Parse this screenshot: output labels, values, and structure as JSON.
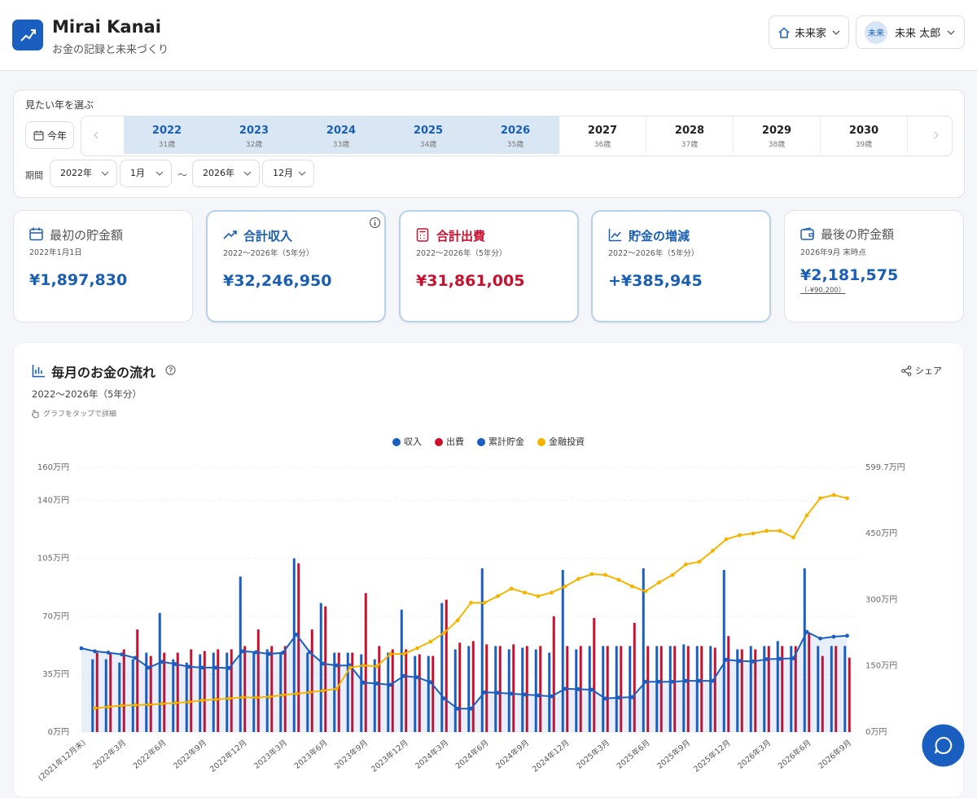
{
  "header": {
    "app_title": "Mirai Kanai",
    "subtitle": "お金の記録と未来づくり",
    "household": "未来家",
    "avatar": "未来",
    "user_name": "未来 太郎"
  },
  "year_selector": {
    "label": "見たい年を選ぶ",
    "today_button": "今年",
    "years": [
      {
        "year": "2022",
        "age": "31歳",
        "selected": true
      },
      {
        "year": "2023",
        "age": "32歳",
        "selected": true
      },
      {
        "year": "2024",
        "age": "33歳",
        "selected": true
      },
      {
        "year": "2025",
        "age": "34歳",
        "selected": true
      },
      {
        "year": "2026",
        "age": "35歳",
        "selected": true
      },
      {
        "year": "2027",
        "age": "36歳",
        "selected": false
      },
      {
        "year": "2028",
        "age": "37歳",
        "selected": false
      },
      {
        "year": "2029",
        "age": "38歳",
        "selected": false
      },
      {
        "year": "2030",
        "age": "39歳",
        "selected": false
      }
    ],
    "period_label": "期間",
    "start_year": "2022年",
    "start_month": "1月",
    "separator": "〜",
    "end_year": "2026年",
    "end_month": "12月"
  },
  "cards": [
    {
      "title": "最初の貯金額",
      "subtitle": "2022年1月1日",
      "value": "¥1,897,830"
    },
    {
      "title": "合計収入",
      "subtitle": "2022〜2026年（5年分）",
      "value": "¥32,246,950"
    },
    {
      "title": "合計出費",
      "subtitle": "2022〜2026年（5年分）",
      "value": "¥31,861,005"
    },
    {
      "title": "貯金の増減",
      "subtitle": "2022〜2026年（5年分）",
      "value": "+¥385,945"
    },
    {
      "title": "最後の貯金額",
      "subtitle": "2026年9月 末時点",
      "value": "¥2,181,575",
      "note": "（-¥90,200）"
    }
  ],
  "chart_panel": {
    "hint": "グラフをタップで詳細",
    "share": "シェア"
  },
  "chart_data": {
    "type": "combo",
    "title": "毎月のお金の流れ",
    "subtitle": "2022〜2026年（5年分）",
    "categories": [
      "(2021年12月末)",
      null,
      null,
      "2022年3月",
      null,
      null,
      "2022年6月",
      null,
      null,
      "2022年9月",
      null,
      null,
      "2022年12月",
      null,
      null,
      "2023年3月",
      null,
      null,
      "2023年6月",
      null,
      null,
      "2023年9月",
      null,
      null,
      "2023年12月",
      null,
      null,
      "2024年3月",
      null,
      null,
      "2024年6月",
      null,
      null,
      "2024年9月",
      null,
      null,
      "2024年12月",
      null,
      null,
      "2025年3月",
      null,
      null,
      "2025年6月",
      null,
      null,
      "2025年9月",
      null,
      null,
      "2025年12月",
      null,
      null,
      "2026年3月",
      null,
      null,
      "2026年6月",
      null,
      null,
      "2026年9月"
    ],
    "series": [
      {
        "name": "収入",
        "type": "bar",
        "color": "#1a5fc0",
        "values": [
          null,
          44,
          44,
          42,
          44,
          48,
          72,
          44,
          42,
          47,
          48,
          48,
          94,
          48,
          50,
          48,
          105,
          48,
          78,
          48,
          48,
          47,
          44,
          48,
          74,
          46,
          46,
          78,
          50,
          52,
          99,
          52,
          50,
          51,
          50,
          48,
          98,
          50,
          52,
          52,
          52,
          52,
          99,
          52,
          52,
          53,
          52,
          52,
          98,
          50,
          52,
          52,
          55,
          52,
          99,
          52,
          52,
          52
        ]
      },
      {
        "name": "出費",
        "type": "bar",
        "color": "#c8102e",
        "values": [
          null,
          48,
          48,
          50,
          62,
          46,
          48,
          48,
          50,
          49,
          50,
          50,
          52,
          62,
          52,
          52,
          102,
          62,
          76,
          48,
          48,
          84,
          52,
          50,
          50,
          47,
          46,
          80,
          54,
          55,
          53,
          52,
          53,
          52,
          52,
          70,
          52,
          52,
          69,
          52,
          52,
          66,
          52,
          52,
          52,
          52,
          52,
          51,
          58,
          50,
          50,
          52,
          52,
          52,
          60,
          46,
          52,
          45
        ]
      },
      {
        "name": "累計貯金",
        "type": "line",
        "area": true,
        "axis": "y2",
        "color": "#1a5fc0",
        "values": [
          189.8,
          183,
          180,
          176,
          168,
          146,
          159,
          154,
          148,
          146,
          146,
          145,
          183,
          181,
          177,
          180,
          221,
          181,
          155,
          151,
          151,
          112,
          110,
          107,
          127,
          124,
          113,
          76,
          53,
          53,
          90,
          89,
          87,
          85,
          83,
          81,
          98,
          97,
          96,
          76,
          78,
          79,
          114,
          114,
          114,
          116,
          116,
          116,
          164,
          161,
          160,
          165,
          166,
          167,
          227,
          212,
          216,
          218.2
        ]
      },
      {
        "name": "金融投資",
        "type": "line",
        "axis": "y2",
        "color": "#f5b400",
        "values": [
          null,
          54,
          57,
          60,
          61,
          62,
          64,
          66,
          68,
          72,
          74,
          76,
          79,
          78,
          80,
          84,
          87,
          90,
          94,
          98,
          146,
          151,
          149,
          177,
          177,
          190,
          205,
          225,
          253,
          293,
          293,
          308,
          325,
          316,
          308,
          316,
          330,
          347,
          358,
          356,
          345,
          330,
          319,
          339,
          356,
          380,
          386,
          411,
          437,
          446,
          450,
          456,
          456,
          441,
          491,
          530,
          537,
          530
        ]
      }
    ],
    "ylim": [
      0,
      160
    ],
    "yticks": [
      {
        "value": 0,
        "label": "0万円"
      },
      {
        "value": 35,
        "label": "35万円"
      },
      {
        "value": 70,
        "label": "70万円"
      },
      {
        "value": 105,
        "label": "105万円"
      },
      {
        "value": 140,
        "label": "140万円"
      },
      {
        "value": 160,
        "label": "160万円"
      }
    ],
    "y2lim": [
      0,
      599.7
    ],
    "y2ticks": [
      {
        "value": 0,
        "label": "0万円"
      },
      {
        "value": 150,
        "label": "150万円"
      },
      {
        "value": 300,
        "label": "300万円"
      },
      {
        "value": 450,
        "label": "450万円"
      },
      {
        "value": 599.7,
        "label": "599.7万円"
      }
    ],
    "grid": true,
    "legend": "top"
  }
}
